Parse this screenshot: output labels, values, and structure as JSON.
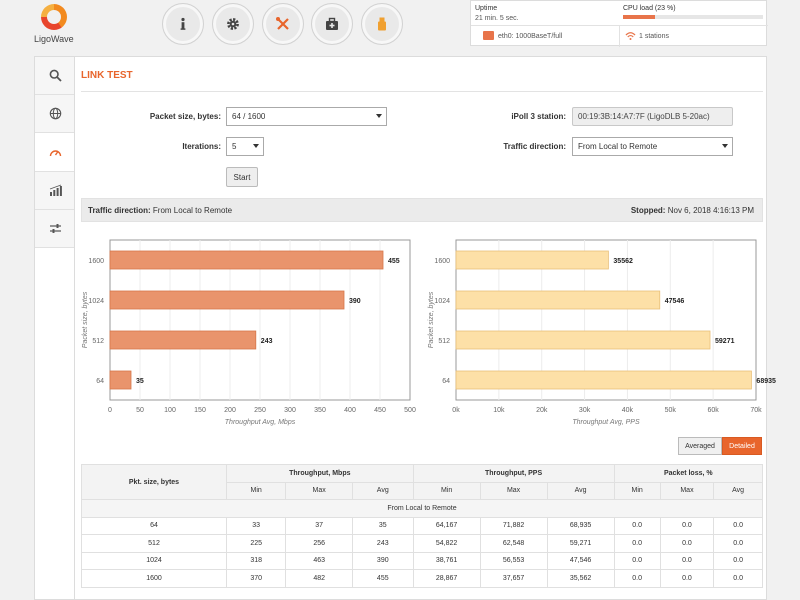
{
  "brand": {
    "name": "LigoWave"
  },
  "nav": [
    {
      "name": "info",
      "icon": "info-icon"
    },
    {
      "name": "settings",
      "icon": "gear-icon"
    },
    {
      "name": "tools",
      "icon": "tools-icon"
    },
    {
      "name": "maintenance",
      "icon": "toolbox-icon"
    },
    {
      "name": "usb",
      "icon": "usb-icon"
    }
  ],
  "status": {
    "uptime_label": "Uptime",
    "uptime_value": "21 min. 5 sec.",
    "cpu_label": "CPU load (23 %)",
    "cpu_percent": 23,
    "eth_text": "eth0: 1000BaseT/full",
    "stations_text": "1 stations"
  },
  "sidebar": [
    {
      "icon": "search-icon"
    },
    {
      "icon": "globe-icon"
    },
    {
      "icon": "speedometer-icon"
    },
    {
      "icon": "signal-bars-icon"
    },
    {
      "icon": "sliders-icon"
    }
  ],
  "page": {
    "title": "LINK TEST"
  },
  "form": {
    "packet_size_label": "Packet size, bytes:",
    "packet_size_value": "64 / 1600",
    "iterations_label": "Iterations:",
    "iterations_value": "5",
    "start_label": "Start",
    "station_label": "iPoll 3 station:",
    "station_value": "00:19:3B:14:A7:7F (LigoDLB 5-20ac)",
    "direction_label": "Traffic direction:",
    "direction_value": "From Local to Remote"
  },
  "infobar": {
    "direction_label": "Traffic direction:",
    "direction_value": "From Local to Remote",
    "stopped_label": "Stopped:",
    "stopped_value": "Nov 6, 2018 4:16:13 PM"
  },
  "view_toggle": {
    "averaged": "Averaged",
    "detailed": "Detailed",
    "active": "detailed"
  },
  "colors": {
    "accent": "#e8652c",
    "mbps_bar": "#e9946c",
    "pps_bar": "#fde0a7"
  },
  "chart_data": [
    {
      "type": "bar",
      "orientation": "horizontal",
      "categories": [
        "1600",
        "1024",
        "512",
        "64"
      ],
      "values": [
        455,
        390,
        243,
        35
      ],
      "xlabel": "Throughput Avg, Mbps",
      "ylabel": "Packet size, bytes",
      "xlim": [
        0,
        500
      ],
      "xticks": [
        "0",
        "50",
        "100",
        "150",
        "200",
        "250",
        "300",
        "350",
        "400",
        "450",
        "500"
      ],
      "value_labels": [
        "455",
        "390",
        "243",
        "35"
      ]
    },
    {
      "type": "bar",
      "orientation": "horizontal",
      "categories": [
        "1600",
        "1024",
        "512",
        "64"
      ],
      "values": [
        35562,
        47546,
        59271,
        68935
      ],
      "xlabel": "Throughput Avg, PPS",
      "ylabel": "Packet size, bytes",
      "xlim": [
        0,
        70000
      ],
      "xticks": [
        "0k",
        "10k",
        "20k",
        "30k",
        "40k",
        "50k",
        "60k",
        "70k"
      ],
      "value_labels": [
        "35562",
        "47546",
        "59271",
        "68935"
      ]
    }
  ],
  "table": {
    "col_pkt": "Pkt. size, bytes",
    "group_mbps": "Throughput, Mbps",
    "group_pps": "Throughput, PPS",
    "group_loss": "Packet loss, %",
    "sub": [
      "Min",
      "Max",
      "Avg"
    ],
    "section": "From Local to Remote",
    "rows": [
      [
        "64",
        "33",
        "37",
        "35",
        "64,167",
        "71,882",
        "68,935",
        "0.0",
        "0.0",
        "0.0"
      ],
      [
        "512",
        "225",
        "256",
        "243",
        "54,822",
        "62,548",
        "59,271",
        "0.0",
        "0.0",
        "0.0"
      ],
      [
        "1024",
        "318",
        "463",
        "390",
        "38,761",
        "56,553",
        "47,546",
        "0.0",
        "0.0",
        "0.0"
      ],
      [
        "1600",
        "370",
        "482",
        "455",
        "28,867",
        "37,657",
        "35,562",
        "0.0",
        "0.0",
        "0.0"
      ]
    ]
  }
}
